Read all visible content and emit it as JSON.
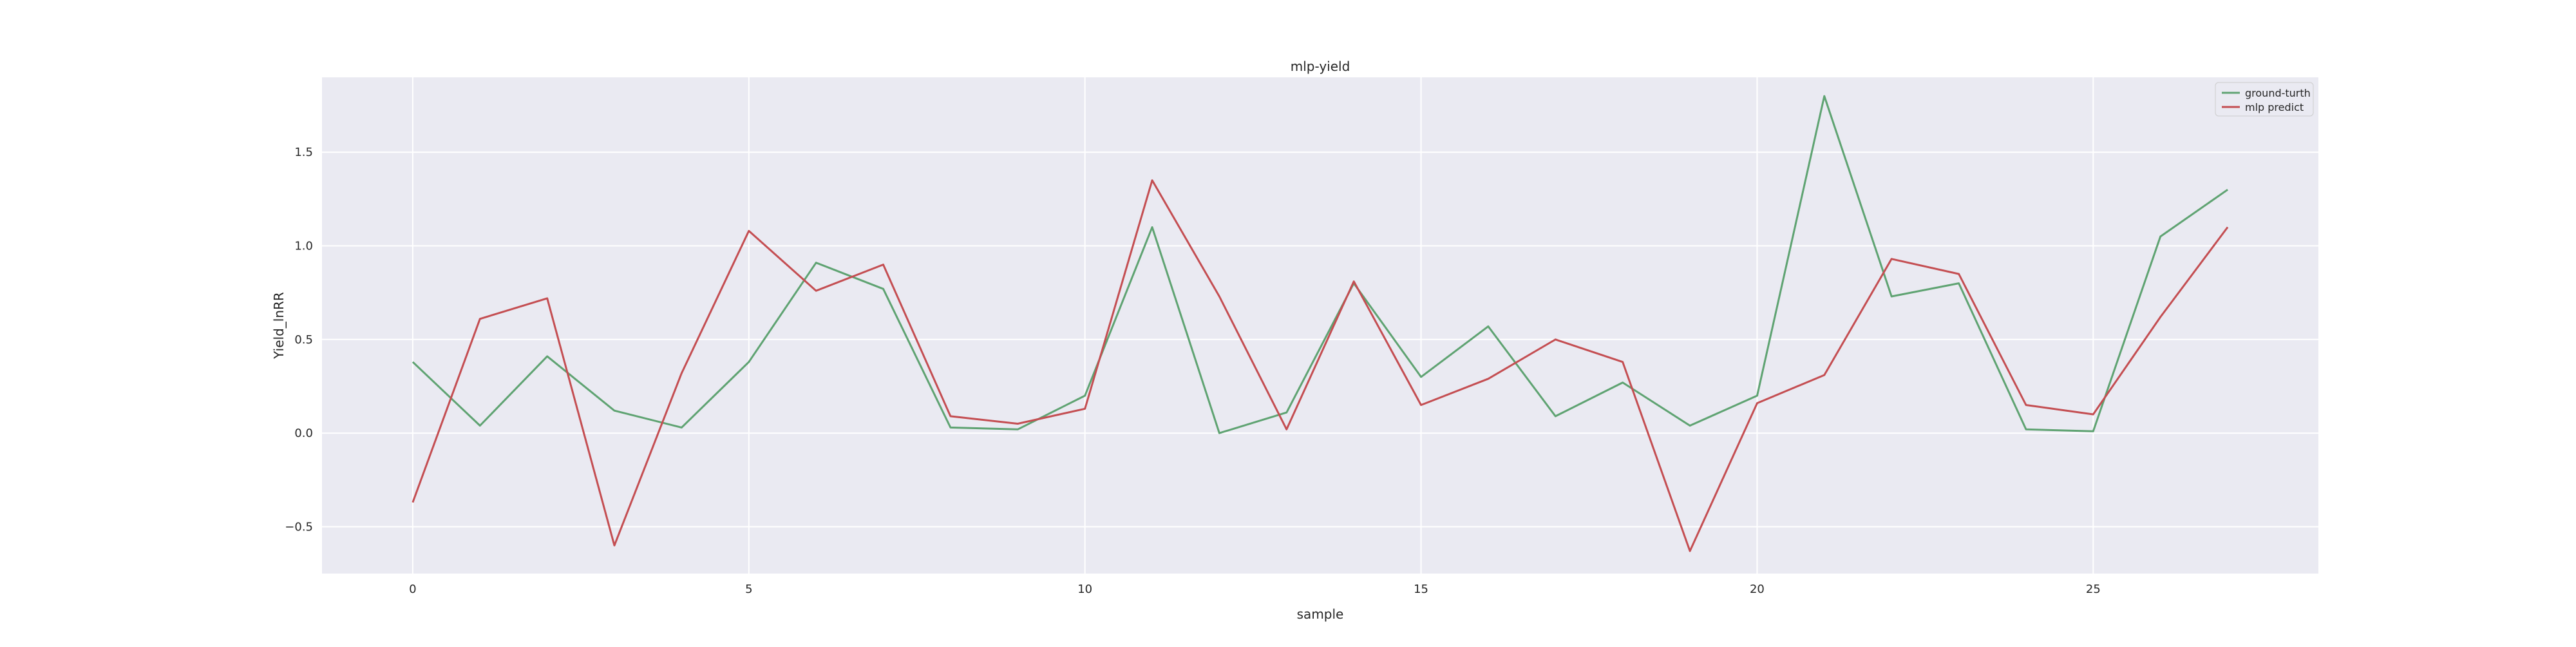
{
  "chart_data": {
    "type": "line",
    "title": "mlp-yield",
    "xlabel": "sample",
    "ylabel": "Yield_lnRR",
    "xlim": [
      -1.35,
      28.35
    ],
    "ylim": [
      -0.75,
      1.9
    ],
    "xticks": [
      0,
      5,
      10,
      15,
      20,
      25
    ],
    "xtick_labels": [
      "0",
      "5",
      "10",
      "15",
      "20",
      "25"
    ],
    "yticks": [
      -0.5,
      0.0,
      0.5,
      1.0,
      1.5
    ],
    "ytick_labels": [
      "−0.5",
      "0.0",
      "0.5",
      "1.0",
      "1.5"
    ],
    "grid": true,
    "legend_position": "upper-right",
    "x": [
      0,
      1,
      2,
      3,
      4,
      5,
      6,
      7,
      8,
      9,
      10,
      11,
      12,
      13,
      14,
      15,
      16,
      17,
      18,
      19,
      20,
      21,
      22,
      23,
      24,
      25,
      26,
      27
    ],
    "series": [
      {
        "name": "ground-turth",
        "color": "#5fa372",
        "values": [
          0.38,
          0.04,
          0.41,
          0.12,
          0.03,
          0.38,
          0.91,
          0.77,
          0.03,
          0.02,
          0.2,
          1.1,
          0.0,
          0.11,
          0.8,
          0.3,
          0.57,
          0.09,
          0.27,
          0.04,
          0.2,
          1.8,
          0.73,
          0.8,
          0.02,
          0.01,
          1.05,
          1.3
        ]
      },
      {
        "name": "mlp predict",
        "color": "#c44e52",
        "values": [
          -0.37,
          0.61,
          0.72,
          -0.6,
          0.32,
          1.08,
          0.76,
          0.9,
          0.09,
          0.05,
          0.13,
          1.35,
          0.73,
          0.02,
          0.81,
          0.15,
          0.29,
          0.5,
          0.38,
          -0.63,
          0.16,
          0.31,
          0.93,
          0.85,
          0.15,
          0.1,
          0.62,
          1.1
        ]
      }
    ],
    "colors": {
      "plot_background": "#eaeaf2",
      "grid": "#ffffff",
      "text": "#262626"
    }
  }
}
